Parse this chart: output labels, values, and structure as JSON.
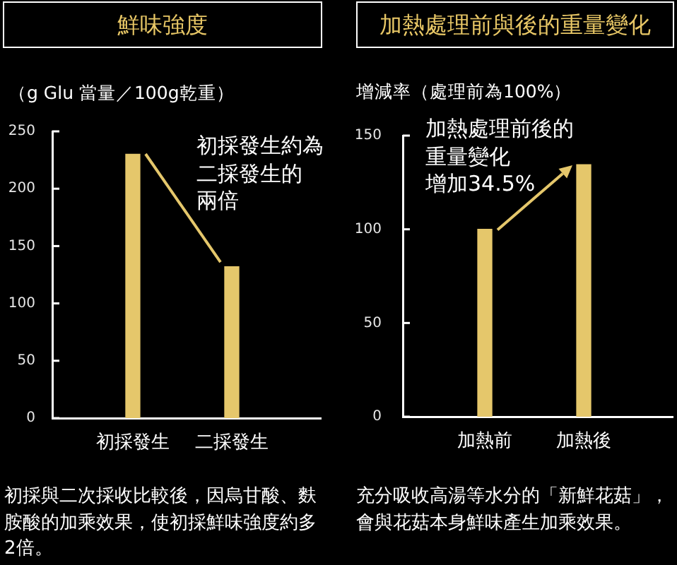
{
  "chart_data": [
    {
      "type": "bar",
      "title": "鮮味強度",
      "ylabel": "（g Glu 當量／100g乾重）",
      "categories": [
        "初採發生",
        "二採發生"
      ],
      "values": [
        230,
        132
      ],
      "color": "#e5c76b",
      "ylim": [
        0,
        250
      ],
      "yticks": [
        0,
        50,
        100,
        150,
        200,
        250
      ],
      "annotations": [
        "初採發生約為二採發生的兩倍",
        "初採與二次採收比較後，因烏甘酸、麩胺酸的加乘效果，使初採鮮味強度約多2倍。"
      ]
    },
    {
      "type": "bar",
      "title": "加熱處理前與後的重量變化",
      "ylabel": "增減率（處理前為100%）",
      "categories": [
        "加熱前",
        "加熱後"
      ],
      "values": [
        100,
        134.5
      ],
      "color": "#e5c76b",
      "ylim": [
        0,
        150
      ],
      "yticks": [
        0,
        50,
        100,
        150
      ],
      "annotations": [
        "加熱處理前後的重量變化增加34.5%",
        "充分吸收高湯等水分的「新鮮花菇」，會與花菇本身鮮味產生加乘效果。"
      ]
    }
  ]
}
